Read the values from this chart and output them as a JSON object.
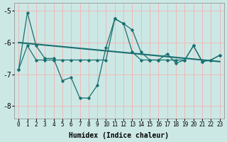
{
  "xlabel": "Humidex (Indice chaleur)",
  "background_color": "#cce8e5",
  "grid_color": "#f0b8b8",
  "line_color": "#1a7070",
  "x": [
    0,
    1,
    2,
    3,
    4,
    5,
    6,
    7,
    8,
    9,
    10,
    11,
    12,
    13,
    14,
    15,
    16,
    17,
    18,
    19,
    20,
    21,
    22,
    23
  ],
  "line1": [
    -6.85,
    -5.05,
    -6.1,
    -6.5,
    -6.5,
    -7.2,
    -7.1,
    -7.75,
    -7.75,
    -7.35,
    -6.15,
    -5.25,
    -5.4,
    -5.6,
    -6.3,
    -6.55,
    -6.55,
    -6.35,
    -6.65,
    -6.55,
    -6.1,
    -6.6,
    -6.55,
    -6.4
  ],
  "line2": [
    -6.85,
    -6.1,
    -6.55,
    -6.55,
    -6.55,
    -6.55,
    -6.55,
    -6.55,
    -6.55,
    -6.55,
    -6.55,
    -5.25,
    -5.4,
    -6.3,
    -6.55,
    -6.55,
    -6.55,
    -6.55,
    -6.55,
    -6.55,
    -6.1,
    -6.6,
    -6.55,
    -6.4
  ],
  "trend_x": [
    0,
    23
  ],
  "trend_y": [
    -6.0,
    -6.6
  ],
  "ylim": [
    -8.4,
    -4.75
  ],
  "yticks": [
    -8,
    -7,
    -6,
    -5
  ],
  "xlim": [
    -0.5,
    23.5
  ],
  "xticks": [
    0,
    1,
    2,
    3,
    4,
    5,
    6,
    7,
    8,
    9,
    10,
    11,
    12,
    13,
    14,
    15,
    16,
    17,
    18,
    19,
    20,
    21,
    22,
    23
  ]
}
